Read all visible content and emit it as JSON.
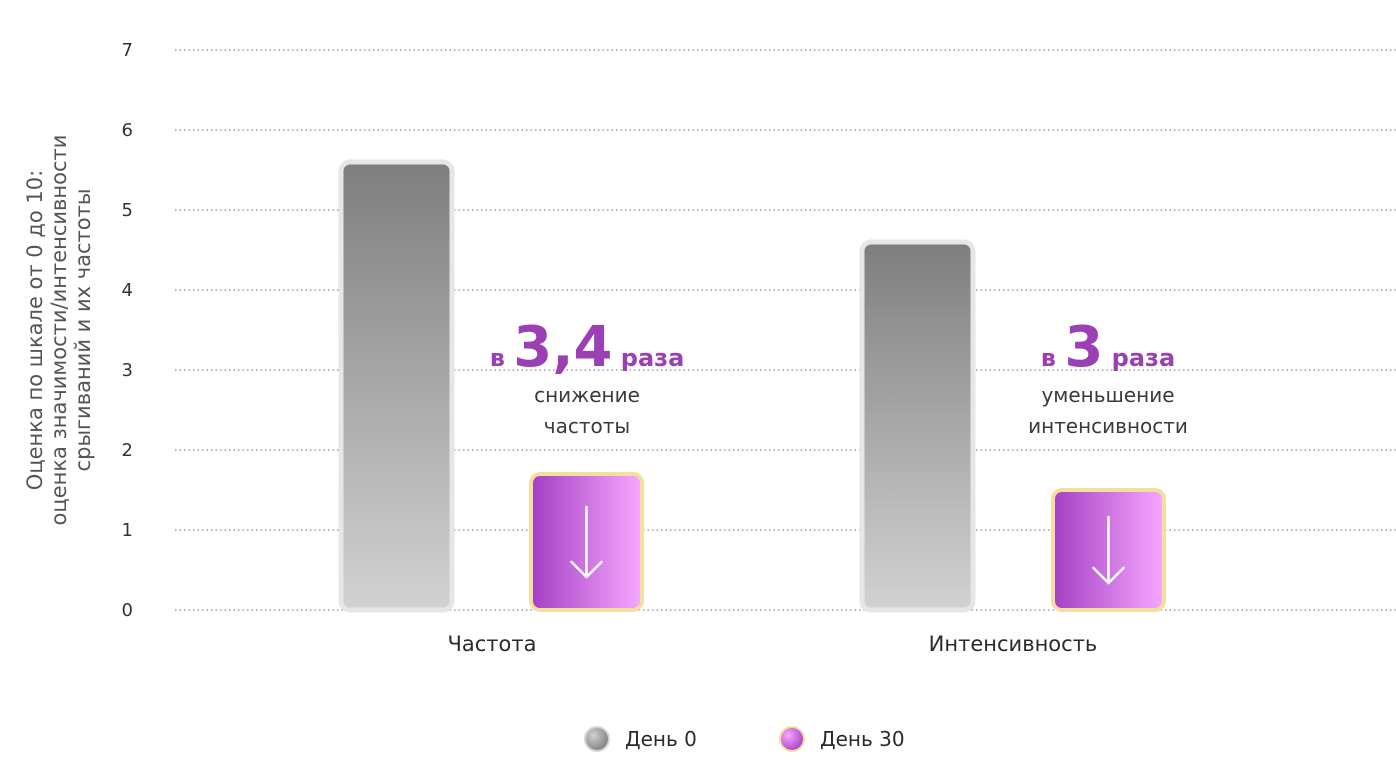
{
  "chart_data": {
    "type": "bar",
    "categories": [
      "Частота",
      "Интенсивность"
    ],
    "series": [
      {
        "name": "День 0",
        "values": [
          5.6,
          4.6
        ]
      },
      {
        "name": "День 30",
        "values": [
          1.7,
          1.5
        ]
      }
    ],
    "ylabel_lines": [
      "Оценка по шкале от 0 до 10:",
      "оценка значимости/интенсивности",
      "срыгиваний и их частоты"
    ],
    "ylim": [
      0,
      7
    ],
    "yticks": [
      "0",
      "1",
      "2",
      "3",
      "4",
      "5",
      "6",
      "7"
    ],
    "grid": true,
    "legend_position": "bottom-center",
    "annotations": [
      {
        "prefix": "в",
        "value": "3,4",
        "suffix": "раза",
        "lines": [
          "снижение",
          "частоты"
        ]
      },
      {
        "prefix": "в",
        "value": "3",
        "suffix": "раза",
        "lines": [
          "уменьшение",
          "интенсивности"
        ]
      }
    ],
    "colors": {
      "day0_top": "#7e7e7e",
      "day0_bottom": "#d2d2d2",
      "day30_left": "#a43fc4",
      "day30_right": "#f7a8ff",
      "day30_border": "#f3dfa0",
      "accent": "#9b3fb5"
    }
  }
}
